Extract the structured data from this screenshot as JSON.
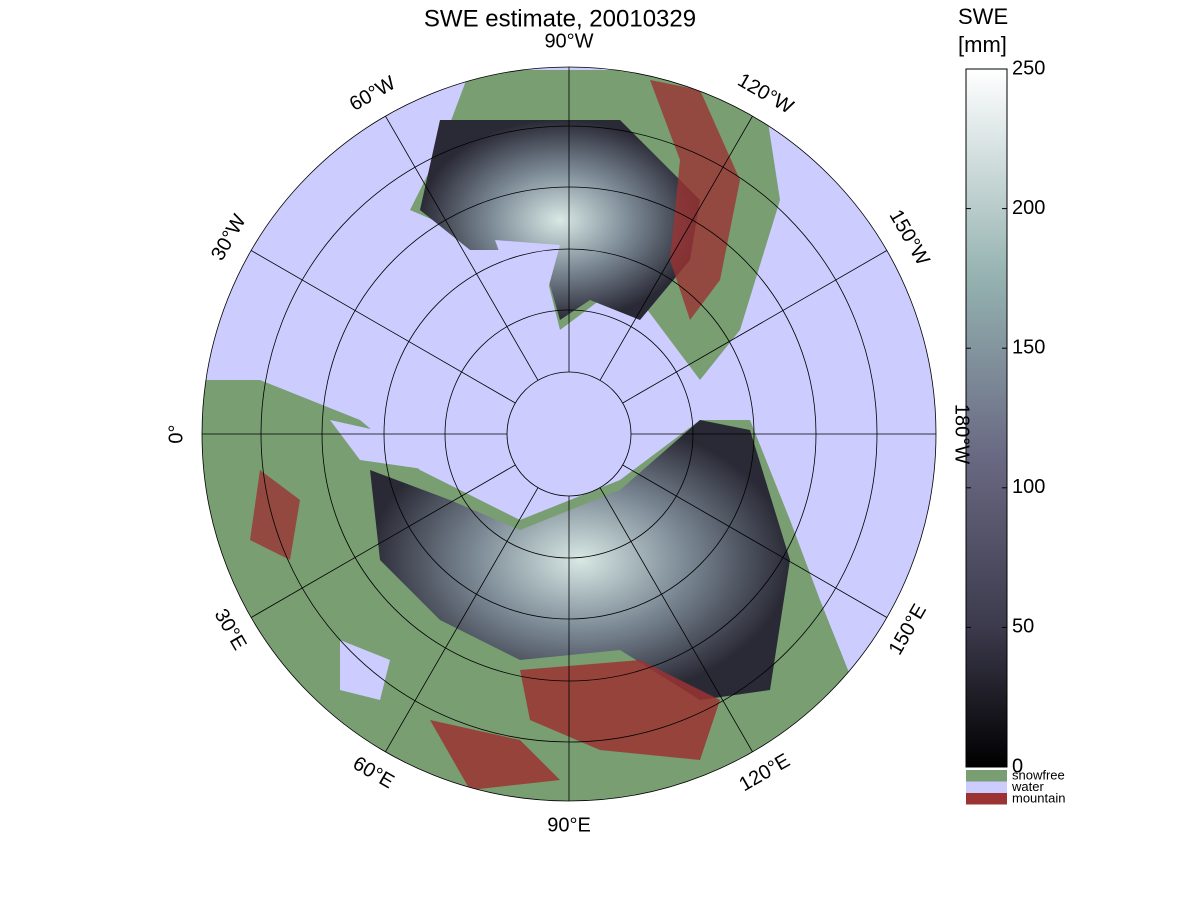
{
  "chart_data": {
    "type": "map",
    "title": "SWE estimate, 20010329",
    "lon_ticks": [
      {
        "value": -90,
        "label": "90°W"
      },
      {
        "value": -120,
        "label": "120°W"
      },
      {
        "value": -150,
        "label": "150°W"
      },
      {
        "value": -180,
        "label": "180°W"
      },
      {
        "value": 150,
        "label": "150°E"
      },
      {
        "value": 120,
        "label": "120°E"
      },
      {
        "value": 90,
        "label": "90°E"
      },
      {
        "value": 60,
        "label": "60°E"
      },
      {
        "value": 30,
        "label": "30°E"
      },
      {
        "value": 0,
        "label": "0°"
      },
      {
        "value": -30,
        "label": "30°W"
      },
      {
        "value": -60,
        "label": "60°W"
      }
    ],
    "colorbar": {
      "label": [
        "SWE",
        "[mm]"
      ],
      "lim": [
        0,
        250
      ],
      "ticks": [
        0,
        50,
        100,
        150,
        200,
        250
      ]
    },
    "legend": [
      {
        "name": "snowfree",
        "color": "#789e72"
      },
      {
        "name": "water",
        "color": "#ccccff"
      },
      {
        "name": "mountain",
        "color": "#9b3333"
      }
    ]
  }
}
